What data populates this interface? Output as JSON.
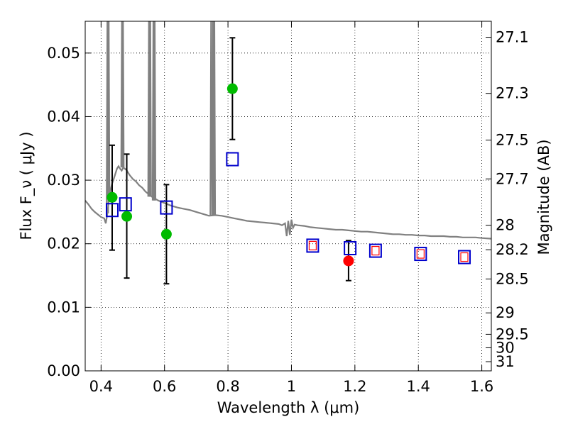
{
  "chart_data": {
    "type": "scatter",
    "xlabel": "Wavelength  λ (μm)",
    "ylabel": "Flux  F_ν  ( μJy )",
    "y2label": "Magnitude (AB)",
    "xlim": [
      0.35,
      1.63
    ],
    "ylim": [
      0.0,
      0.055
    ],
    "xticks": [
      0.4,
      0.6,
      0.8,
      1.0,
      1.2,
      1.4,
      1.6
    ],
    "xtick_labels": [
      "0.4",
      "0.6",
      "0.8",
      "1",
      "1.2",
      "1.4",
      "1.6"
    ],
    "yticks": [
      0.0,
      0.01,
      0.02,
      0.03,
      0.04,
      0.05
    ],
    "ytick_labels": [
      "0.00",
      "0.01",
      "0.02",
      "0.03",
      "0.04",
      "0.05"
    ],
    "mag_ticks": [
      27.1,
      27.3,
      27.5,
      27.7,
      28,
      28.2,
      28.5,
      29,
      29.5,
      30,
      31
    ],
    "mag_tick_labels": [
      "27.1",
      "27.3",
      "27.5",
      "27.7",
      "28",
      "28.2",
      "28.5",
      "29",
      "29.5",
      "30",
      "31"
    ],
    "grid": true,
    "series": [
      {
        "kind": "line",
        "color": "#808080",
        "points": [
          [
            0.35,
            0.0268
          ],
          [
            0.36,
            0.0262
          ],
          [
            0.37,
            0.0255
          ],
          [
            0.38,
            0.025
          ],
          [
            0.39,
            0.0246
          ],
          [
            0.4,
            0.0242
          ],
          [
            0.41,
            0.024
          ],
          [
            0.415,
            0.0232
          ],
          [
            0.42,
            0.0248
          ],
          [
            0.425,
            0.027
          ],
          [
            0.43,
            0.0285
          ],
          [
            0.435,
            0.0295
          ],
          [
            0.44,
            0.0302
          ],
          [
            0.45,
            0.0318
          ],
          [
            0.455,
            0.0322
          ],
          [
            0.46,
            0.0318
          ],
          [
            0.465,
            0.0315
          ],
          [
            0.47,
            0.032
          ],
          [
            0.48,
            0.0316
          ],
          [
            0.49,
            0.0308
          ],
          [
            0.5,
            0.0302
          ],
          [
            0.51,
            0.0298
          ],
          [
            0.52,
            0.0292
          ],
          [
            0.53,
            0.0288
          ],
          [
            0.54,
            0.0282
          ],
          [
            0.55,
            0.0278
          ],
          [
            0.56,
            0.0274
          ],
          [
            0.58,
            0.0268
          ],
          [
            0.6,
            0.0264
          ],
          [
            0.62,
            0.026
          ],
          [
            0.64,
            0.0257
          ],
          [
            0.66,
            0.0255
          ],
          [
            0.68,
            0.0253
          ],
          [
            0.7,
            0.025
          ],
          [
            0.72,
            0.0247
          ],
          [
            0.74,
            0.0244
          ],
          [
            0.76,
            0.0245
          ],
          [
            0.78,
            0.0244
          ],
          [
            0.8,
            0.0242
          ],
          [
            0.82,
            0.024
          ],
          [
            0.84,
            0.0238
          ],
          [
            0.86,
            0.0236
          ],
          [
            0.88,
            0.0235
          ],
          [
            0.9,
            0.0234
          ],
          [
            0.92,
            0.0233
          ],
          [
            0.94,
            0.0232
          ],
          [
            0.96,
            0.0231
          ],
          [
            0.97,
            0.0229
          ],
          [
            0.98,
            0.0232
          ],
          [
            0.985,
            0.0212
          ],
          [
            0.99,
            0.0236
          ],
          [
            0.995,
            0.0214
          ],
          [
            1.0,
            0.0238
          ],
          [
            1.005,
            0.0225
          ],
          [
            1.01,
            0.023
          ],
          [
            1.02,
            0.0229
          ],
          [
            1.04,
            0.0228
          ],
          [
            1.06,
            0.0226
          ],
          [
            1.08,
            0.0225
          ],
          [
            1.1,
            0.0224
          ],
          [
            1.12,
            0.0223
          ],
          [
            1.14,
            0.0222
          ],
          [
            1.16,
            0.0222
          ],
          [
            1.18,
            0.0221
          ],
          [
            1.2,
            0.022
          ],
          [
            1.22,
            0.0219
          ],
          [
            1.24,
            0.0219
          ],
          [
            1.26,
            0.0218
          ],
          [
            1.28,
            0.0217
          ],
          [
            1.3,
            0.0216
          ],
          [
            1.32,
            0.0215
          ],
          [
            1.34,
            0.0215
          ],
          [
            1.36,
            0.0214
          ],
          [
            1.38,
            0.0214
          ],
          [
            1.4,
            0.0213
          ],
          [
            1.42,
            0.0213
          ],
          [
            1.44,
            0.0212
          ],
          [
            1.46,
            0.0212
          ],
          [
            1.48,
            0.0212
          ],
          [
            1.5,
            0.0211
          ],
          [
            1.52,
            0.0211
          ],
          [
            1.54,
            0.021
          ],
          [
            1.56,
            0.021
          ],
          [
            1.58,
            0.021
          ],
          [
            1.6,
            0.0209
          ],
          [
            1.63,
            0.0208
          ]
        ],
        "emission_lines": [
          {
            "x": 0.42,
            "peak": 0.06
          },
          {
            "x": 0.424,
            "peak": 0.06
          },
          {
            "x": 0.466,
            "peak": 0.06
          },
          {
            "x": 0.469,
            "peak": 0.06
          },
          {
            "x": 0.551,
            "peak": 0.06
          },
          {
            "x": 0.555,
            "peak": 0.06
          },
          {
            "x": 0.565,
            "peak": 0.06
          },
          {
            "x": 0.569,
            "peak": 0.06
          },
          {
            "x": 0.747,
            "peak": 0.06
          },
          {
            "x": 0.753,
            "peak": 0.06
          },
          {
            "x": 0.757,
            "peak": 0.06
          }
        ]
      },
      {
        "kind": "model-photometry",
        "marker": "open-square",
        "color": "#0000cc",
        "points": [
          [
            0.435,
            0.0253
          ],
          [
            0.477,
            0.0262
          ],
          [
            0.606,
            0.0257
          ],
          [
            0.814,
            0.0333
          ],
          [
            1.067,
            0.0197
          ],
          [
            1.185,
            0.0193
          ],
          [
            1.265,
            0.0189
          ],
          [
            1.407,
            0.0184
          ],
          [
            1.545,
            0.0179
          ]
        ]
      },
      {
        "kind": "model-photometry-inner",
        "marker": "small-open-square",
        "color": "#ff0000",
        "points": [
          [
            1.067,
            0.0197
          ],
          [
            1.265,
            0.0189
          ],
          [
            1.407,
            0.0184
          ],
          [
            1.545,
            0.0179
          ]
        ]
      },
      {
        "kind": "observed",
        "marker": "filled-circle",
        "color": "#00bb00",
        "points": [
          {
            "x": 0.435,
            "y": 0.0273,
            "err_lo": 0.019,
            "err_hi": 0.0355
          },
          {
            "x": 0.481,
            "y": 0.0243,
            "err_lo": 0.0146,
            "err_hi": 0.0341
          },
          {
            "x": 0.606,
            "y": 0.0215,
            "err_lo": 0.0137,
            "err_hi": 0.0293
          },
          {
            "x": 0.814,
            "y": 0.0444,
            "err_lo": 0.0364,
            "err_hi": 0.0524
          }
        ]
      },
      {
        "kind": "observed",
        "marker": "filled-circle",
        "color": "#ff0000",
        "points": [
          {
            "x": 1.18,
            "y": 0.0173,
            "err_lo": 0.0142,
            "err_hi": 0.0205
          }
        ]
      }
    ]
  }
}
